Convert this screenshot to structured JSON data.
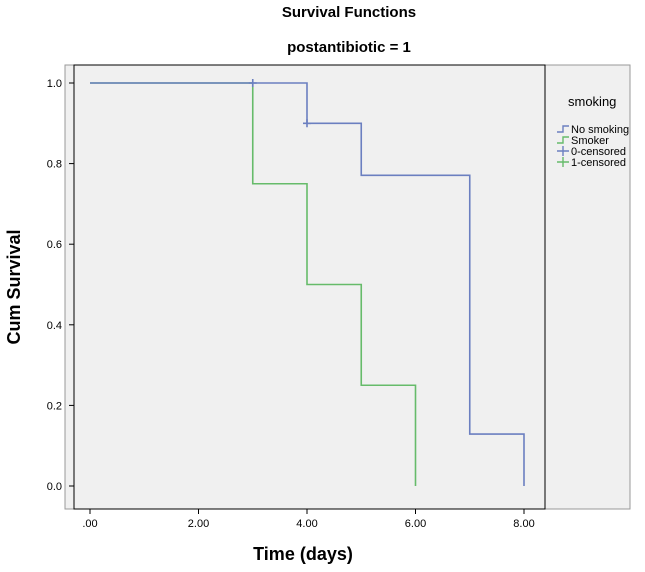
{
  "chart_data": {
    "type": "line",
    "title": "Survival Functions",
    "subtitle": "postantibiotic = 1",
    "xlabel": "Time (days)",
    "ylabel": "Cum Survival",
    "xlim": [
      0,
      8
    ],
    "ylim": [
      0,
      1
    ],
    "x_ticks": [
      0,
      2,
      4,
      6,
      8
    ],
    "x_tick_labels": [
      ".00",
      "2.00",
      "4.00",
      "6.00",
      "8.00"
    ],
    "y_ticks": [
      0,
      0.2,
      0.4,
      0.6,
      0.8,
      1.0
    ],
    "y_tick_labels": [
      "0.0",
      "0.2",
      "0.4",
      "0.6",
      "0.8",
      "1.0"
    ],
    "grid": false,
    "legend_title": "smoking",
    "legend_position": "top-right",
    "series": [
      {
        "name": "No smoking",
        "color": "#6b7fc0",
        "steps": [
          [
            0,
            1.0
          ],
          [
            4,
            0.9
          ],
          [
            5,
            0.771
          ],
          [
            7,
            0.129
          ],
          [
            8,
            0.0
          ]
        ],
        "end_x": 8,
        "censored_marker_label": "0-censored",
        "censored": [
          [
            3,
            1.0
          ],
          [
            4,
            0.9
          ]
        ]
      },
      {
        "name": "Smoker",
        "color": "#66bb6a",
        "steps": [
          [
            0,
            1.0
          ],
          [
            3,
            0.75
          ],
          [
            4,
            0.5
          ],
          [
            5,
            0.25
          ],
          [
            6,
            0.0
          ]
        ],
        "end_x": 6,
        "censored_marker_label": "1-censored",
        "censored": []
      }
    ]
  }
}
